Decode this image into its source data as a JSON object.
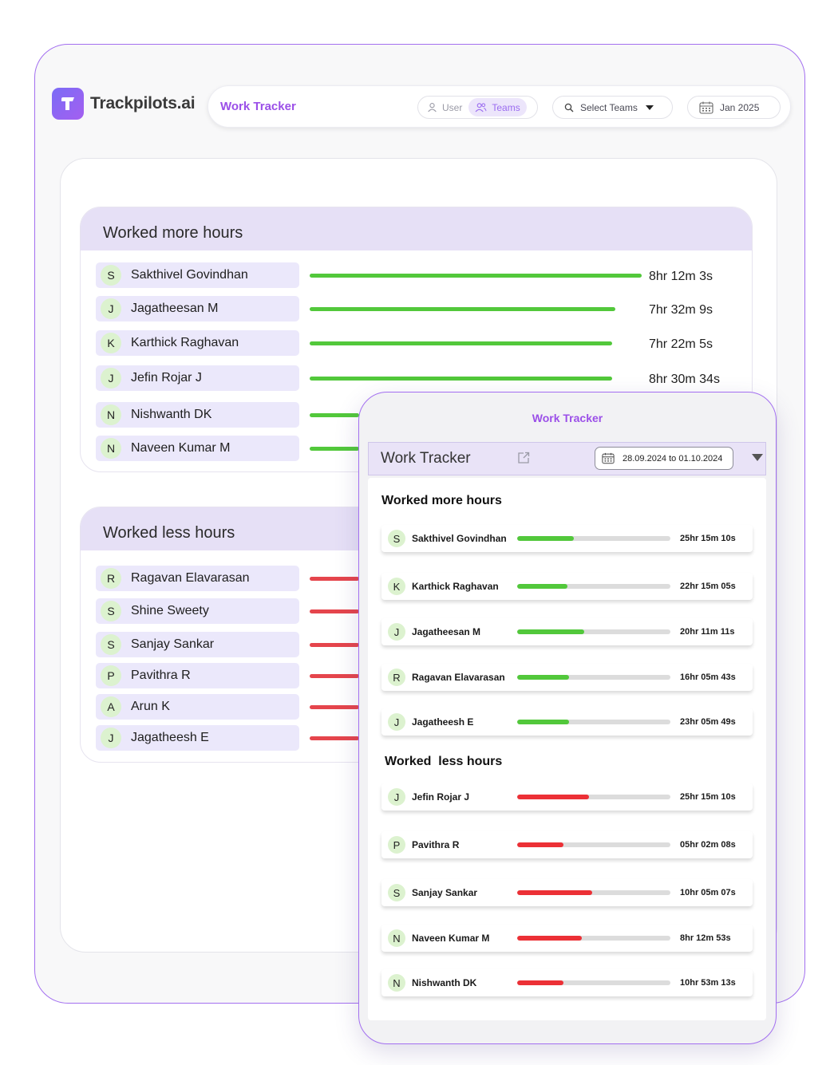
{
  "brand": {
    "name": "Trackpilots.ai"
  },
  "topbar": {
    "title": "Work Tracker",
    "toggle": {
      "user": "User",
      "teams": "Teams"
    },
    "team_select": "Select Teams",
    "month": "Jan 2025"
  },
  "desktop": {
    "more": {
      "heading": "Worked more hours",
      "rows": [
        {
          "initial": "S",
          "name": "Sakthivel Govindhan",
          "duration": "8hr 12m 3s",
          "level": 1.0
        },
        {
          "initial": "J",
          "name": "Jagatheesan M",
          "duration": "7hr 32m 9s",
          "level": 0.92
        },
        {
          "initial": "K",
          "name": "Karthick Raghavan",
          "duration": "7hr 22m 5s",
          "level": 0.91
        },
        {
          "initial": "J",
          "name": "Jefin Rojar J",
          "duration": "8hr 30m 34s",
          "level": 0.91
        },
        {
          "initial": "N",
          "name": "Nishwanth DK",
          "duration": "",
          "level": 0.15
        },
        {
          "initial": "N",
          "name": "Naveen Kumar M",
          "duration": "",
          "level": 0.15
        }
      ]
    },
    "less": {
      "heading": "Worked less hours",
      "rows": [
        {
          "initial": "R",
          "name": "Ragavan Elavarasan",
          "level": 0.15
        },
        {
          "initial": "S",
          "name": "Shine Sweety",
          "level": 0.15
        },
        {
          "initial": "S",
          "name": "Sanjay Sankar",
          "level": 0.15
        },
        {
          "initial": "P",
          "name": "Pavithra R",
          "level": 0.15
        },
        {
          "initial": "A",
          "name": "Arun K",
          "level": 0.15
        },
        {
          "initial": "J",
          "name": "Jagatheesh E",
          "level": 0.15
        }
      ]
    }
  },
  "mobile": {
    "app_title": "Work Tracker",
    "panel_title": "Work Tracker",
    "date_range": "28.09.2024 to 01.10.2024",
    "more": {
      "heading": "Worked more hours",
      "rows": [
        {
          "initial": "S",
          "name": "Sakthivel Govindhan",
          "duration": "25hr 15m 10s",
          "progress": 0.37
        },
        {
          "initial": "K",
          "name": "Karthick Raghavan",
          "duration": "22hr 15m 05s",
          "progress": 0.33
        },
        {
          "initial": "J",
          "name": "Jagatheesan M",
          "duration": "20hr 11m 11s",
          "progress": 0.44
        },
        {
          "initial": "R",
          "name": "Ragavan Elavarasan",
          "duration": "16hr 05m 43s",
          "progress": 0.34
        },
        {
          "initial": "J",
          "name": "Jagatheesh E",
          "duration": "23hr 05m 49s",
          "progress": 0.34
        }
      ]
    },
    "less": {
      "heading": "Worked  less hours",
      "rows": [
        {
          "initial": "J",
          "name": "Jefin Rojar J",
          "duration": "25hr 15m 10s",
          "progress": 0.47
        },
        {
          "initial": "P",
          "name": "Pavithra R",
          "duration": "05hr 02m 08s",
          "progress": 0.3
        },
        {
          "initial": "S",
          "name": "Sanjay Sankar",
          "duration": "10hr 05m 07s",
          "progress": 0.49
        },
        {
          "initial": "N",
          "name": "Naveen Kumar M",
          "duration": "8hr 12m 53s",
          "progress": 0.42
        },
        {
          "initial": "N",
          "name": "Nishwanth DK",
          "duration": "10hr 53m 13s",
          "progress": 0.3
        }
      ]
    }
  },
  "colors": {
    "accent": "#9b4fe8",
    "good": "#52c83b",
    "bad": "#ec3036",
    "section_head": "#e6e0f6"
  }
}
